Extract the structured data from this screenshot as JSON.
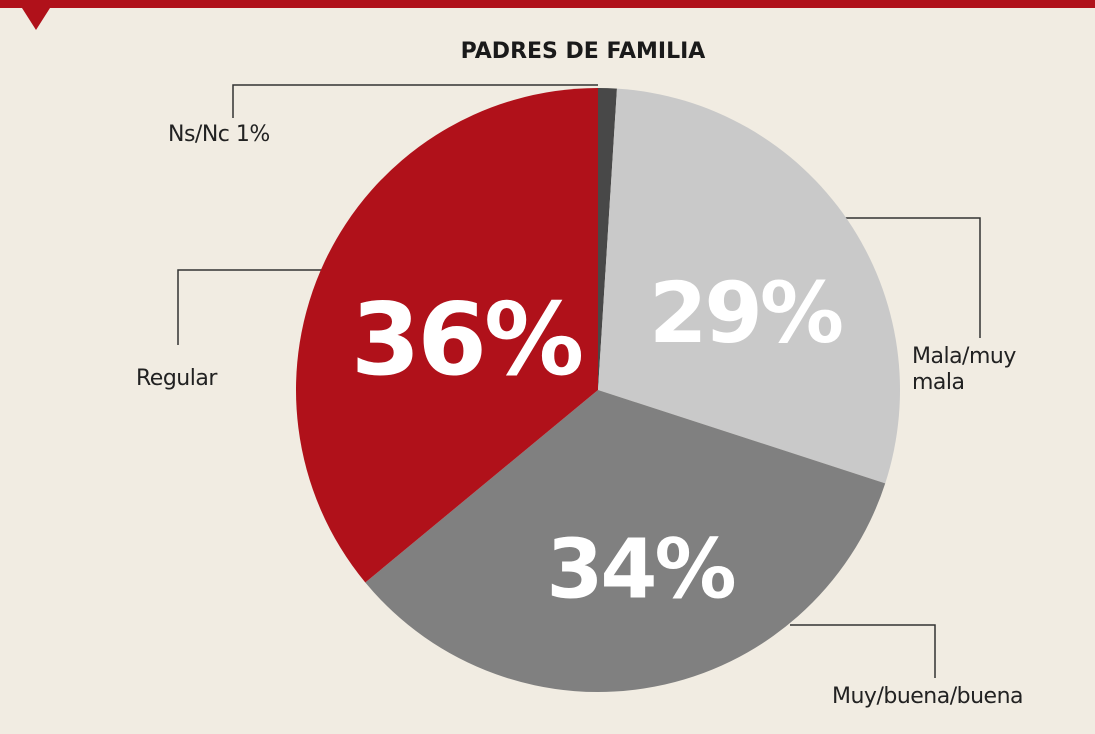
{
  "chart_data": {
    "type": "pie",
    "title": "PADRES DE FAMILIA",
    "categories": [
      "Ns/Nc",
      "Mala/muy mala",
      "Muy/buena/buena",
      "Regular"
    ],
    "values": [
      1,
      29,
      34,
      36
    ],
    "value_labels": [
      "1%",
      "29%",
      "34%",
      "36%"
    ],
    "colors": [
      "#484848",
      "#c9c9c9",
      "#808080",
      "#b0111a"
    ]
  }
}
